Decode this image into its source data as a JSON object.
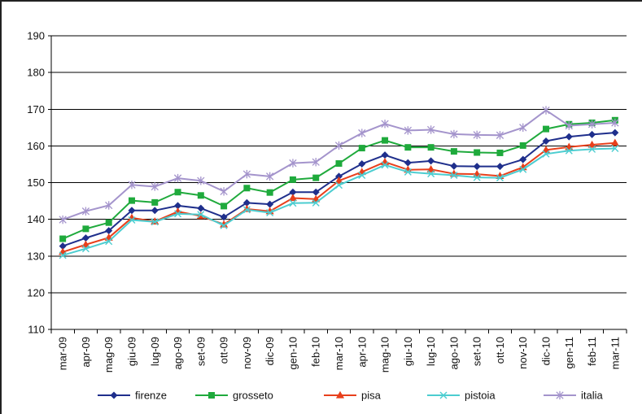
{
  "chart_data": {
    "type": "line",
    "title": "",
    "xlabel": "",
    "ylabel": "",
    "ylim": [
      110,
      190
    ],
    "yticks": [
      110,
      120,
      130,
      140,
      150,
      160,
      170,
      180,
      190
    ],
    "grid": true,
    "legend_position": "bottom",
    "categories": [
      "mar-09",
      "apr-09",
      "mag-09",
      "giu-09",
      "lug-09",
      "ago-09",
      "set-09",
      "ott-09",
      "nov-09",
      "dic-09",
      "gen-10",
      "feb-10",
      "mar-10",
      "apr-10",
      "mag-10",
      "giu-10",
      "lug-10",
      "ago-10",
      "set-10",
      "ott-10",
      "nov-10",
      "dic-10",
      "gen-11",
      "feb-11",
      "mar-11"
    ],
    "series": [
      {
        "name": "firenze",
        "color": "#1f2f8c",
        "marker": "diamond",
        "values": [
          132.7,
          134.9,
          136.9,
          142.4,
          142.4,
          143.7,
          143.0,
          140.6,
          144.5,
          144.1,
          147.4,
          147.4,
          151.7,
          155.1,
          157.5,
          155.4,
          155.9,
          154.5,
          154.4,
          154.4,
          156.3,
          161.3,
          162.5,
          163.1,
          163.6
        ]
      },
      {
        "name": "grosseto",
        "color": "#1faa3c",
        "marker": "square",
        "values": [
          134.7,
          137.4,
          139.1,
          145.1,
          144.6,
          147.4,
          146.5,
          143.6,
          148.5,
          147.3,
          150.8,
          151.3,
          155.2,
          159.4,
          161.5,
          159.6,
          159.6,
          158.5,
          158.2,
          158.1,
          160.1,
          164.6,
          165.9,
          166.3,
          167.0
        ]
      },
      {
        "name": "pisa",
        "color": "#e8401c",
        "marker": "triangle",
        "values": [
          131.1,
          133.1,
          135.0,
          140.4,
          139.4,
          142.1,
          140.9,
          138.6,
          142.8,
          142.2,
          145.8,
          145.5,
          150.5,
          152.9,
          155.6,
          153.5,
          153.6,
          152.4,
          152.3,
          151.8,
          154.2,
          158.9,
          159.7,
          160.3,
          160.8
        ]
      },
      {
        "name": "pistoia",
        "color": "#4ccdd0",
        "marker": "x",
        "values": [
          130.2,
          132.0,
          134.0,
          139.8,
          139.3,
          141.5,
          141.3,
          138.3,
          142.6,
          141.8,
          144.4,
          144.5,
          149.3,
          152.0,
          154.8,
          152.9,
          152.4,
          152.0,
          151.4,
          151.3,
          153.6,
          157.8,
          158.7,
          159.1,
          159.3
        ]
      },
      {
        "name": "italia",
        "color": "#a494cc",
        "marker": "star",
        "values": [
          139.9,
          142.2,
          143.8,
          149.4,
          148.9,
          151.2,
          150.5,
          147.6,
          152.3,
          151.7,
          155.3,
          155.6,
          160.1,
          163.5,
          166.0,
          164.2,
          164.4,
          163.2,
          163.0,
          162.9,
          165.0,
          169.7,
          165.5,
          165.9,
          166.3
        ]
      }
    ]
  }
}
